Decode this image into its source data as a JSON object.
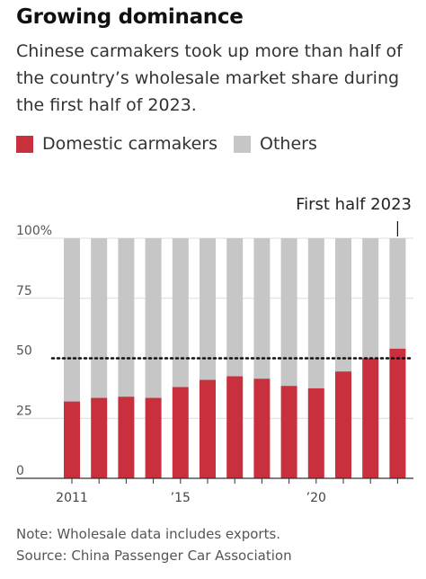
{
  "title": "Growing dominance",
  "subtitle": "Chinese carmakers took up more than half of the country’s wholesale market share during the first half of 2023.",
  "legend": {
    "domestic": "Domestic carmakers",
    "others": "Others"
  },
  "colors": {
    "domestic": "#c8303e",
    "others": "#c6c6c6",
    "reference": "#111111"
  },
  "annotation": "First half 2023",
  "note": "Note: Wholesale data includes exports.",
  "source": "Source: China Passenger Car Association",
  "chart_data": {
    "type": "bar",
    "stacked": true,
    "categories": [
      "2011",
      "2012",
      "2013",
      "2014",
      "2015",
      "2016",
      "2017",
      "2018",
      "2019",
      "2020",
      "2021",
      "2022",
      "2023"
    ],
    "x_tick_labels": [
      "2011",
      "",
      "",
      "",
      "’15",
      "",
      "",
      "",
      "",
      "’20",
      "",
      "",
      ""
    ],
    "y_tick_labels": [
      "100%",
      "75",
      "50",
      "25",
      "0"
    ],
    "y_ticks": [
      100,
      75,
      50,
      25,
      0
    ],
    "ylim": [
      0,
      100
    ],
    "reference_line": 50,
    "series": [
      {
        "name": "Domestic carmakers",
        "values": [
          32,
          33.5,
          34,
          33.5,
          38,
          41,
          42.5,
          41.5,
          38.5,
          37.5,
          44.5,
          50,
          54
        ]
      },
      {
        "name": "Others",
        "values": [
          68,
          66.5,
          66,
          66.5,
          62,
          59,
          57.5,
          58.5,
          61.5,
          62.5,
          55.5,
          50,
          46
        ]
      }
    ]
  }
}
